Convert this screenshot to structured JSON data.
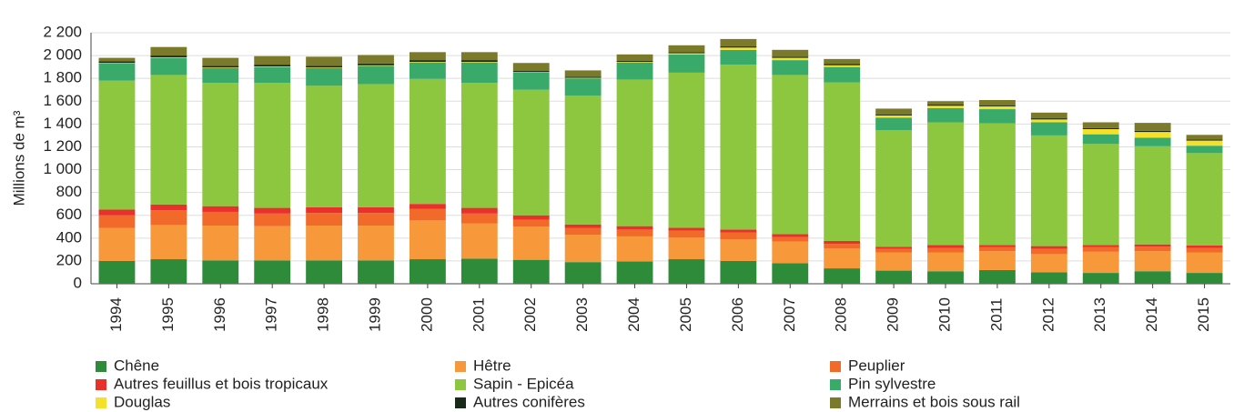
{
  "chart_data": {
    "type": "stacked-bar",
    "y_label": "Millions de m³",
    "categories": [
      "1994",
      "1995",
      "1996",
      "1997",
      "1998",
      "1999",
      "2000",
      "2001",
      "2002",
      "2003",
      "2004",
      "2005",
      "2006",
      "2007",
      "2008",
      "2009",
      "2010",
      "2011",
      "2012",
      "2013",
      "2014",
      "2015"
    ],
    "ylim": [
      0,
      2200
    ],
    "yticks": [
      0,
      200,
      400,
      600,
      800,
      {
        "value": 1000,
        "label": "1 000"
      },
      {
        "value": 1200,
        "label": "1 200"
      },
      {
        "value": 1400,
        "label": "1 400"
      },
      {
        "value": 1600,
        "label": "1 600"
      },
      {
        "value": 1800,
        "label": "1 800"
      },
      {
        "value": 2000,
        "label": "2 000"
      },
      {
        "value": 2200,
        "label": "2 200"
      }
    ],
    "grid": true,
    "series": [
      {
        "name": "Chêne",
        "color": "#2e8b3a",
        "values": [
          200,
          215,
          205,
          205,
          205,
          205,
          215,
          220,
          210,
          190,
          195,
          215,
          200,
          180,
          135,
          115,
          110,
          120,
          100,
          95,
          110,
          95
        ]
      },
      {
        "name": "Hêtre",
        "color": "#f7983a",
        "values": [
          290,
          300,
          305,
          300,
          305,
          305,
          340,
          310,
          290,
          240,
          220,
          190,
          190,
          190,
          175,
          160,
          165,
          165,
          160,
          185,
          175,
          180
        ]
      },
      {
        "name": "Peuplier",
        "color": "#f26a2a",
        "values": [
          110,
          130,
          120,
          110,
          110,
          110,
          100,
          85,
          60,
          60,
          60,
          60,
          60,
          40,
          40,
          30,
          40,
          35,
          45,
          40,
          40,
          40
        ]
      },
      {
        "name": "Autres feuillus et bois tropicaux",
        "color": "#e8312a",
        "values": [
          50,
          50,
          50,
          50,
          50,
          50,
          45,
          50,
          40,
          30,
          30,
          25,
          25,
          25,
          25,
          20,
          25,
          20,
          25,
          20,
          20,
          20
        ]
      },
      {
        "name": "Sapin - Epicéa",
        "color": "#8dc63f",
        "values": [
          1130,
          1135,
          1080,
          1095,
          1065,
          1080,
          1095,
          1095,
          1100,
          1130,
          1285,
          1360,
          1445,
          1395,
          1390,
          1020,
          1075,
          1065,
          970,
          885,
          860,
          810
        ]
      },
      {
        "name": "Pin sylvestre",
        "color": "#3aaa6a",
        "values": [
          150,
          150,
          130,
          140,
          155,
          160,
          145,
          180,
          150,
          150,
          150,
          160,
          130,
          130,
          135,
          110,
          125,
          125,
          115,
          85,
          75,
          65
        ]
      },
      {
        "name": "Douglas",
        "color": "#f5e12a",
        "values": [
          5,
          5,
          5,
          5,
          5,
          5,
          5,
          5,
          5,
          5,
          5,
          10,
          20,
          20,
          15,
          20,
          20,
          25,
          25,
          45,
          50,
          45
        ]
      },
      {
        "name": "Autres conifères",
        "color": "#1a2a1a",
        "values": [
          15,
          15,
          15,
          15,
          15,
          15,
          15,
          15,
          10,
          10,
          10,
          10,
          10,
          10,
          10,
          10,
          10,
          10,
          10,
          10,
          10,
          10
        ]
      },
      {
        "name": "Merrains et bois sous rail",
        "color": "#7a7a2a",
        "values": [
          30,
          75,
          70,
          75,
          80,
          75,
          70,
          70,
          70,
          55,
          55,
          60,
          65,
          60,
          45,
          50,
          30,
          45,
          50,
          50,
          70,
          40
        ]
      }
    ]
  }
}
